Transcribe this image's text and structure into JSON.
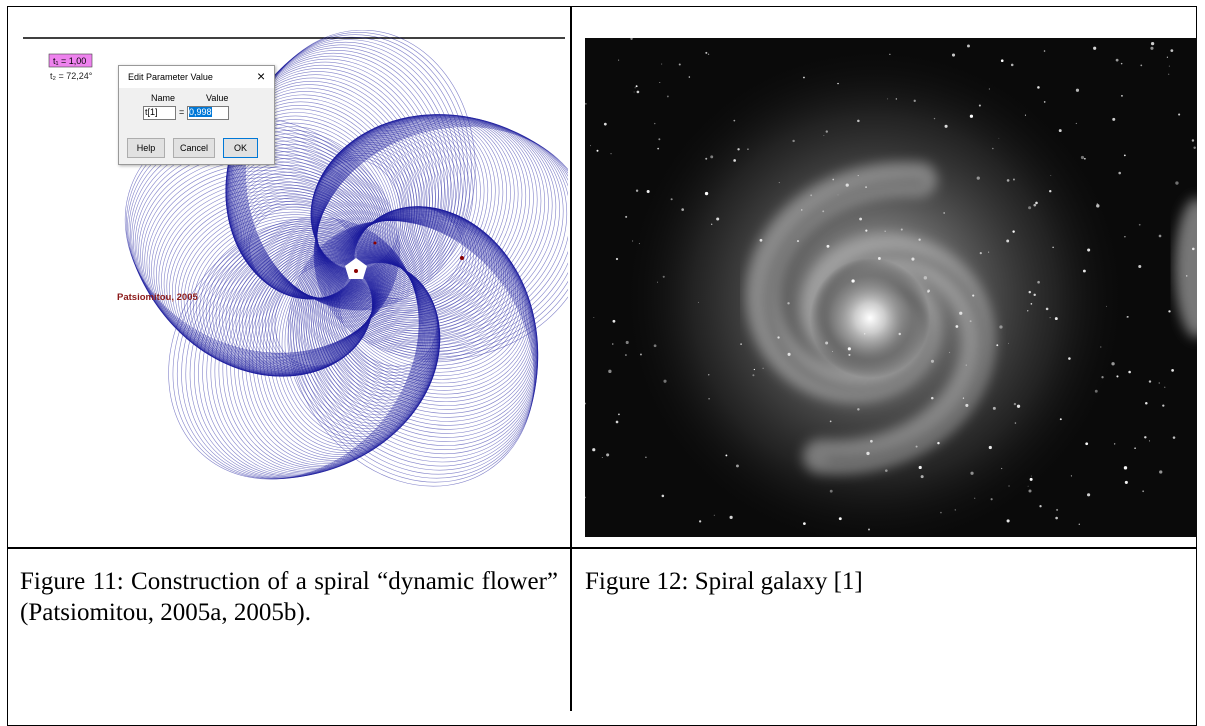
{
  "figure_11": {
    "t1_label": "t₁ = 1,00",
    "t2_label": "t₂ = 72,24°",
    "dialog": {
      "title": "Edit Parameter Value",
      "close": "×",
      "name_header": "Name",
      "value_header": "Value",
      "name": "t[1]",
      "equals": "=",
      "value": "0,998",
      "buttons": [
        "Help",
        "Cancel",
        "OK"
      ]
    },
    "credit": "Patsiomitou, 2005",
    "caption": "Figure 11: Construction of a spiral “dynamic flower” (Patsiomitou, 2005a, 2005b)."
  },
  "figure_12": {
    "caption": "Figure 12: Spiral galaxy [1]"
  }
}
